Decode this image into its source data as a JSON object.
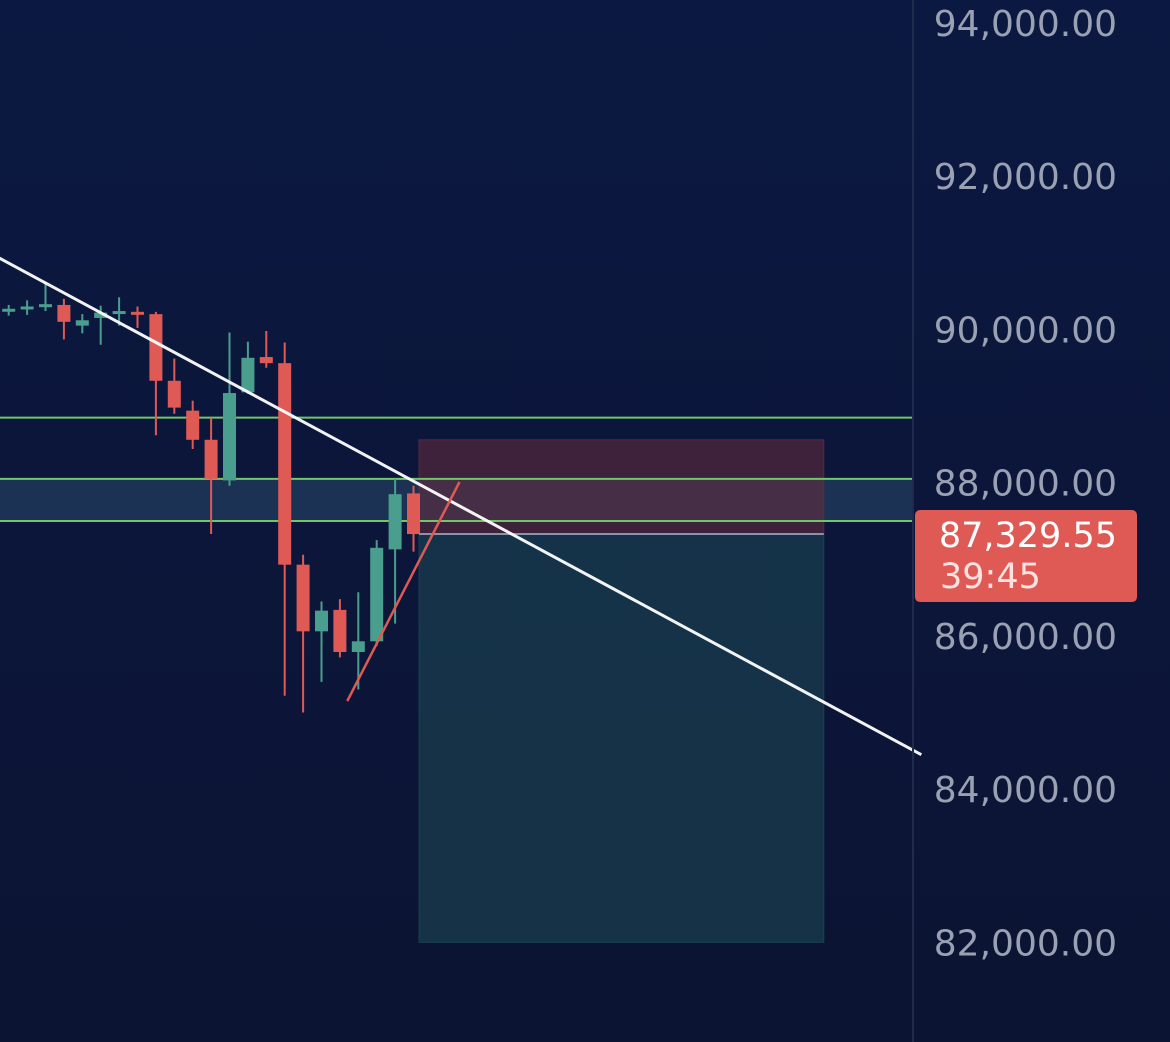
{
  "colors": {
    "background_top": "#0b1841",
    "background_bottom": "#0c1433",
    "axis_separator": "#1f2a4c",
    "up_candle": "#4a9e8d",
    "down_candle": "#e05a55",
    "level_line": "#6fc76a",
    "zone_fill": "#2c4a6a",
    "trendline": "#ffffff",
    "support_trendline": "#e05a55",
    "stop_zone_fill": "#6a2c3d",
    "target_zone_fill": "#1d4a56",
    "price_tag": "#e05a55"
  },
  "chart_data": {
    "type": "candlestick",
    "y_axis": {
      "range": [
        80700,
        94300
      ],
      "ticks": [
        94000,
        92000,
        90000,
        88000,
        86000,
        84000,
        82000
      ],
      "tick_labels": [
        "94,000.00",
        "92,000.00",
        "90,000.00",
        "88,000.00",
        "86,000.00",
        "84,000.00",
        "82,000.00"
      ]
    },
    "candles": [
      {
        "open": 90250,
        "high": 90320,
        "low": 90180,
        "close": 90270
      },
      {
        "open": 90280,
        "high": 90380,
        "low": 90190,
        "close": 90300
      },
      {
        "open": 90300,
        "high": 90620,
        "low": 90240,
        "close": 90330
      },
      {
        "open": 90320,
        "high": 90400,
        "low": 89870,
        "close": 90100
      },
      {
        "open": 90050,
        "high": 90200,
        "low": 89950,
        "close": 90120
      },
      {
        "open": 90150,
        "high": 90310,
        "low": 89800,
        "close": 90220
      },
      {
        "open": 90220,
        "high": 90420,
        "low": 90050,
        "close": 90240
      },
      {
        "open": 90230,
        "high": 90300,
        "low": 90020,
        "close": 90200
      },
      {
        "open": 90200,
        "high": 90230,
        "low": 88620,
        "close": 89330
      },
      {
        "open": 89330,
        "high": 89620,
        "low": 88900,
        "close": 88980
      },
      {
        "open": 88940,
        "high": 89070,
        "low": 88440,
        "close": 88560
      },
      {
        "open": 88560,
        "high": 88850,
        "low": 87330,
        "close": 88050
      },
      {
        "open": 88030,
        "high": 89960,
        "low": 87960,
        "close": 89170
      },
      {
        "open": 89180,
        "high": 89840,
        "low": 89160,
        "close": 89630
      },
      {
        "open": 89640,
        "high": 89980,
        "low": 89500,
        "close": 89560
      },
      {
        "open": 89560,
        "high": 89830,
        "low": 85220,
        "close": 86930
      },
      {
        "open": 86930,
        "high": 87060,
        "low": 85000,
        "close": 86060
      },
      {
        "open": 86060,
        "high": 86450,
        "low": 85400,
        "close": 86330
      },
      {
        "open": 86340,
        "high": 86480,
        "low": 85720,
        "close": 85790
      },
      {
        "open": 85790,
        "high": 86570,
        "low": 85300,
        "close": 85930
      },
      {
        "open": 85930,
        "high": 87250,
        "low": 85870,
        "close": 87150
      },
      {
        "open": 87130,
        "high": 88050,
        "low": 86160,
        "close": 87850
      },
      {
        "open": 87860,
        "high": 87960,
        "low": 87100,
        "close": 87329.55
      }
    ],
    "horizontal_levels": [
      88850,
      88050,
      87500
    ],
    "zone_band": {
      "from": 87500,
      "to": 88050
    },
    "trendline": {
      "from": {
        "candle_index": -8,
        "price": 91900
      },
      "to": {
        "candle_index": 49.6,
        "price": 84450
      }
    },
    "support_trendline": {
      "from": {
        "candle_index": 18.4,
        "price": 85150
      },
      "to": {
        "candle_index": 24.5,
        "price": 88010
      }
    },
    "position": {
      "start_candle_index": 22.3,
      "end_candle_index": 44.3,
      "entry": 87329.55,
      "stop": 88560,
      "target": 82000
    },
    "last_price": 87329.55,
    "last_price_label": "87,329.55",
    "countdown": "39:45"
  }
}
